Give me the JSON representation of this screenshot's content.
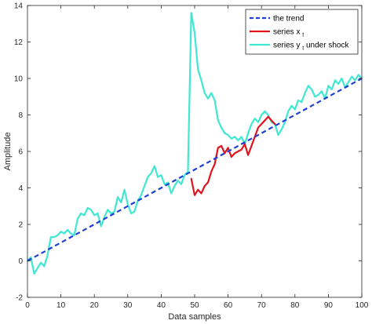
{
  "chart_data": {
    "type": "line",
    "title": "",
    "xlabel": "Data samples",
    "ylabel": "Amplitude",
    "xlim": [
      0,
      100
    ],
    "ylim": [
      -2,
      14
    ],
    "xticks": [
      "0",
      "10",
      "20",
      "30",
      "40",
      "50",
      "60",
      "70",
      "80",
      "90",
      "100"
    ],
    "yticks": [
      "-2",
      "0",
      "2",
      "4",
      "6",
      "8",
      "10",
      "12",
      "14"
    ],
    "grid": false,
    "legend_position": "top-right",
    "legend": [
      {
        "text": "the trend",
        "sub": "",
        "suffix": ""
      },
      {
        "text": "series x",
        "sub": "t",
        "suffix": ""
      },
      {
        "text": "series y",
        "sub": "t",
        "suffix": " under shock"
      }
    ],
    "colors": {
      "trend": "#1f3fd6",
      "series_x": "#e0141e",
      "series_y": "#3ee8d2",
      "axis": "#262626"
    },
    "series": [
      {
        "name": "the trend",
        "style": "dashed",
        "x": [
          0,
          100
        ],
        "y": [
          0,
          10
        ]
      },
      {
        "name": "series x",
        "style": "solid",
        "x": [
          49,
          50,
          51,
          52,
          53,
          54,
          55,
          56,
          57,
          58,
          59,
          60,
          61,
          62,
          63,
          64,
          65,
          66,
          67,
          68,
          69,
          70,
          71,
          72,
          73,
          74
        ],
        "y": [
          4.5,
          3.6,
          3.9,
          3.7,
          4.1,
          4.3,
          4.9,
          5.3,
          6.2,
          6.3,
          5.9,
          6.2,
          5.7,
          5.9,
          6.0,
          6.1,
          6.4,
          5.8,
          6.3,
          6.8,
          7.3,
          7.5,
          7.7,
          7.9,
          7.7,
          7.5
        ]
      },
      {
        "name": "series y under shock",
        "style": "solid",
        "x": [
          0,
          1,
          2,
          3,
          4,
          5,
          6,
          7,
          8,
          9,
          10,
          11,
          12,
          13,
          14,
          15,
          16,
          17,
          18,
          19,
          20,
          21,
          22,
          23,
          24,
          25,
          26,
          27,
          28,
          29,
          30,
          31,
          32,
          33,
          34,
          35,
          36,
          37,
          38,
          39,
          40,
          41,
          42,
          43,
          44,
          45,
          46,
          47,
          48,
          49,
          50,
          51,
          52,
          53,
          54,
          55,
          56,
          57,
          58,
          59,
          60,
          61,
          62,
          63,
          64,
          65,
          66,
          67,
          68,
          69,
          70,
          71,
          72,
          73,
          74,
          75,
          76,
          77,
          78,
          79,
          80,
          81,
          82,
          83,
          84,
          85,
          86,
          87,
          88,
          89,
          90,
          91,
          92,
          93,
          94,
          95,
          96,
          97,
          98,
          99,
          100
        ],
        "y": [
          0.0,
          0.2,
          -0.7,
          -0.4,
          -0.1,
          -0.3,
          0.3,
          1.3,
          1.3,
          1.4,
          1.6,
          1.5,
          1.7,
          1.5,
          1.4,
          2.3,
          2.6,
          2.5,
          2.9,
          2.8,
          2.5,
          2.6,
          1.9,
          2.4,
          2.8,
          2.6,
          2.7,
          3.5,
          3.2,
          3.9,
          3.1,
          2.6,
          2.7,
          3.3,
          3.6,
          4.1,
          4.6,
          4.8,
          5.2,
          4.6,
          4.7,
          4.2,
          4.3,
          3.7,
          4.1,
          4.4,
          4.2,
          4.7,
          4.9,
          13.6,
          12.5,
          10.5,
          9.9,
          9.2,
          8.9,
          9.2,
          8.8,
          7.7,
          7.3,
          7.0,
          6.9,
          6.7,
          6.8,
          6.6,
          6.8,
          6.4,
          7.0,
          7.5,
          7.8,
          7.6,
          8.0,
          8.2,
          8.0,
          7.6,
          7.5,
          6.9,
          7.2,
          7.6,
          8.2,
          8.5,
          8.3,
          8.8,
          8.7,
          9.2,
          9.6,
          9.4,
          9.0,
          9.1,
          9.3,
          8.9,
          9.6,
          9.4,
          9.9,
          9.7,
          10.0,
          9.5,
          9.8,
          10.1,
          9.9,
          10.2,
          10.0
        ]
      }
    ]
  }
}
